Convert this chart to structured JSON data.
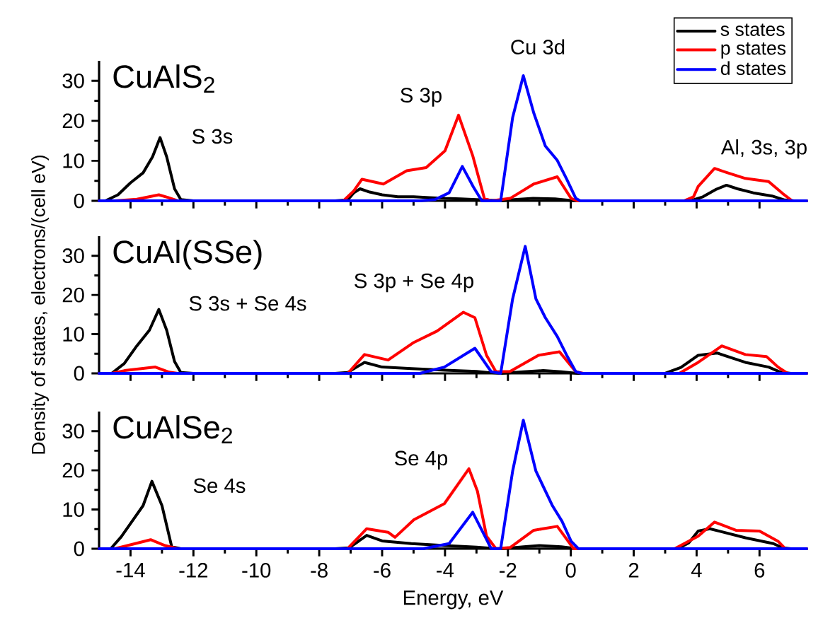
{
  "chart_data": [
    {
      "type": "line",
      "title": "CuAlS$_{2}$",
      "xlim": [
        -15,
        7.5
      ],
      "ylim": [
        0,
        35
      ],
      "xticks": [
        -14,
        -12,
        -10,
        -8,
        -6,
        -4,
        -2,
        0,
        2,
        4,
        6
      ],
      "yticks": [
        0,
        10,
        20,
        30
      ],
      "tick_labels": "y",
      "legend": "top right",
      "series": [
        {
          "name": "s states",
          "color": "#000000",
          "x": [
            -15,
            -14.8,
            -14.4,
            -14.0,
            -13.6,
            -13.3,
            -13.06,
            -12.85,
            -12.6,
            -12.4,
            -12,
            -7.5,
            -7.1,
            -6.9,
            -6.7,
            -6.4,
            -6,
            -5.5,
            -5,
            -4.5,
            -4,
            -3.5,
            -3,
            -2.5,
            -2.2,
            -1.8,
            -1.2,
            -0.5,
            0,
            0.3,
            3.8,
            4.2,
            4.6,
            4.95,
            5.3,
            5.8,
            6.4,
            6.8,
            7.1,
            7.5
          ],
          "values": [
            0,
            0,
            1.5,
            4.5,
            7,
            11,
            15.8,
            11,
            3,
            0.3,
            0,
            0,
            0.2,
            2,
            3,
            2.2,
            1.5,
            1,
            1,
            0.8,
            0.6,
            0.5,
            0.3,
            null,
            0,
            0.3,
            0.6,
            0.5,
            0.1,
            0,
            0,
            1,
            2.8,
            3.9,
            3,
            2,
            1.2,
            0.2,
            0,
            0
          ]
        },
        {
          "name": "p states",
          "color": "#ff0000",
          "x": [
            -15,
            -14.5,
            -13.8,
            -13.1,
            -12.8,
            -12.5,
            -7.23,
            -6.9,
            -6.64,
            -5.96,
            -5.22,
            -4.6,
            -4.0,
            -3.57,
            -3.12,
            -2.75,
            -2.53,
            -1.93,
            -1.18,
            -0.43,
            0.01,
            0.2,
            3.6,
            3.9,
            4.05,
            4.57,
            4.95,
            5.55,
            6.29,
            6.74,
            7.04,
            7.5
          ],
          "values": [
            0,
            0,
            0.4,
            1.5,
            0.8,
            0,
            0,
            2.5,
            5.4,
            4.2,
            7.5,
            8.3,
            12.5,
            21.4,
            11.3,
            0.6,
            0,
            0.6,
            4.2,
            6,
            0.6,
            0,
            0,
            1,
            3.6,
            8.1,
            7.1,
            5.6,
            4.8,
            1.8,
            0,
            0
          ]
        },
        {
          "name": "d states",
          "color": "#0000ff",
          "x": [
            -15,
            -4.8,
            -4.32,
            -3.87,
            -3.45,
            -3.1,
            -2.83,
            -2.23,
            -1.85,
            -1.51,
            -1.18,
            -0.81,
            -0.43,
            -0.13,
            0.16,
            0.3,
            7.5
          ],
          "values": [
            0,
            0,
            0.3,
            2,
            8.6,
            3.5,
            0,
            0,
            20.8,
            31.3,
            22,
            13.7,
            10.1,
            5.4,
            0.6,
            0,
            0
          ]
        }
      ],
      "annotations": [
        "S 3s",
        "S 3p",
        "Cu 3d",
        "Al, 3s, 3p"
      ]
    },
    {
      "type": "line",
      "title": "CuAl(SSe)",
      "ylabel": "Density of states, electrons/(cell eV)",
      "xlim": [
        -15,
        7.5
      ],
      "ylim": [
        0,
        35
      ],
      "xticks": [
        -14,
        -12,
        -10,
        -8,
        -6,
        -4,
        -2,
        0,
        2,
        4,
        6
      ],
      "yticks": [
        0,
        10,
        20,
        30
      ],
      "tick_labels": "y",
      "series": [
        {
          "color": "#000000",
          "x": [
            -15,
            -14.6,
            -14.2,
            -13.8,
            -13.4,
            -13.1,
            -12.85,
            -12.6,
            -12.4,
            -12,
            -7.5,
            -7.1,
            -6.56,
            -6.0,
            -5.07,
            -4,
            -3,
            -2.6,
            -2.2,
            -1.5,
            -0.88,
            -0.3,
            0.2,
            3.0,
            3.5,
            4.05,
            4.65,
            5.55,
            6.29,
            6.67,
            7.0,
            7.5
          ],
          "values": [
            0,
            0,
            2.5,
            7,
            11,
            16.3,
            11,
            3,
            0.2,
            0,
            0,
            0.2,
            2.8,
            1.6,
            1.2,
            0.8,
            0.5,
            0.2,
            0,
            0.4,
            0.7,
            0.4,
            0,
            0,
            1.5,
            4.6,
            5.2,
            2.8,
            1.6,
            0.3,
            0,
            0
          ]
        },
        {
          "color": "#ff0000",
          "x": [
            -15,
            -14.6,
            -14.19,
            -13.21,
            -12.77,
            -12.5,
            -7.5,
            -7.09,
            -6.56,
            -5.81,
            -4.99,
            -4.25,
            -3.42,
            -3.05,
            -2.68,
            -2.38,
            -1.93,
            -1.03,
            -0.36,
            0.16,
            0.4,
            3.45,
            4.05,
            4.8,
            5.55,
            6.22,
            6.59,
            6.89,
            7.5
          ],
          "values": [
            0,
            0,
            0.7,
            1.6,
            0.3,
            0,
            0,
            0,
            4.8,
            3.4,
            7.9,
            10.8,
            15.6,
            14.2,
            4.6,
            0.4,
            0.5,
            4.6,
            5.5,
            0.4,
            0,
            0,
            2.8,
            7,
            4.8,
            4.3,
            1.6,
            0,
            0
          ]
        },
        {
          "color": "#0000ff",
          "x": [
            -15,
            -4.8,
            -4.02,
            -3.05,
            -2.53,
            -2.23,
            -1.85,
            -1.45,
            -1.11,
            -0.81,
            -0.43,
            -0.13,
            0.16,
            0.35,
            7.5
          ],
          "values": [
            0,
            0,
            1.6,
            6.4,
            0.4,
            0,
            19,
            32.4,
            19,
            14.2,
            9.4,
            4.6,
            0.4,
            0,
            0
          ]
        }
      ],
      "annotations": [
        "S 3s + Se 4s",
        "S 3p + Se 4p"
      ]
    },
    {
      "type": "line",
      "title": "CuAlSe$_{2}$",
      "xlabel": "Energy, eV",
      "xlim": [
        -15,
        7.5
      ],
      "ylim": [
        0,
        35
      ],
      "xticks": [
        -14,
        -12,
        -10,
        -8,
        -6,
        -4,
        -2,
        0,
        2,
        4,
        6
      ],
      "yticks": [
        0,
        10,
        20,
        30
      ],
      "series": [
        {
          "color": "#000000",
          "x": [
            -15,
            -14.63,
            -14.3,
            -13.89,
            -13.6,
            -13.32,
            -13.0,
            -12.69,
            -12.4,
            -7.5,
            -7.05,
            -6.49,
            -6.0,
            -5.07,
            -4,
            -3,
            -2.5,
            -2.2,
            -1.5,
            -1.0,
            -0.3,
            0.2,
            3.4,
            3.75,
            4.05,
            4.42,
            5.55,
            6.44,
            6.74,
            7.0,
            7.5
          ],
          "values": [
            0,
            0,
            3,
            7.7,
            11,
            17.2,
            11,
            0.5,
            0,
            0,
            0.2,
            3.4,
            2,
            1.3,
            0.8,
            0.4,
            0.1,
            0,
            0.5,
            0.8,
            0.5,
            0,
            0,
            1.5,
            4.5,
            5.1,
            2.8,
            1.3,
            0.2,
            0,
            0
          ]
        },
        {
          "color": "#ff0000",
          "x": [
            -15,
            -14.5,
            -13.36,
            -12.9,
            -12.5,
            -7.5,
            -7.1,
            -6.49,
            -5.81,
            -5.59,
            -4.99,
            -4.02,
            -3.24,
            -2.97,
            -2.68,
            -2.38,
            -1.93,
            -1.18,
            -0.43,
            0.09,
            3.3,
            4.05,
            4.57,
            5.25,
            6.0,
            6.59,
            6.82,
            7.5
          ],
          "values": [
            0,
            0,
            2.3,
            0.8,
            0,
            0,
            0,
            5.1,
            4.2,
            2.9,
            7.4,
            11.5,
            20.4,
            14.7,
            3.2,
            0,
            0.3,
            4.7,
            5.7,
            0,
            0,
            3.2,
            6.8,
            4.7,
            4.5,
            1.9,
            0,
            0
          ]
        },
        {
          "color": "#0000ff",
          "x": [
            -15,
            -4.7,
            -3.87,
            -3.12,
            -2.53,
            -2.23,
            -1.85,
            -1.51,
            -1.11,
            -0.58,
            -0.28,
            0.01,
            0.24,
            7.5
          ],
          "values": [
            0,
            0,
            1.3,
            9.3,
            0,
            0,
            19.8,
            32.8,
            19.8,
            10.9,
            7,
            1.9,
            0,
            0
          ]
        }
      ],
      "annotations": [
        "Se 4s",
        "Se 4p"
      ]
    }
  ]
}
